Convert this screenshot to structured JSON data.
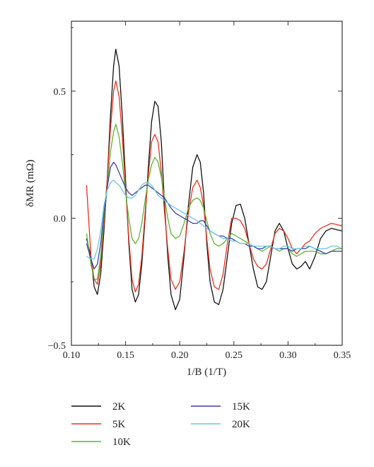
{
  "chart_data": {
    "type": "line",
    "xlabel": "1/B (1/T)",
    "ylabel": "δMR (mΩ)",
    "xlim": [
      0.1,
      0.35
    ],
    "ylim": [
      -0.5,
      0.775
    ],
    "xticks": [
      0.1,
      0.15,
      0.2,
      0.25,
      0.3,
      0.35
    ],
    "xtick_labels": [
      "0.10",
      "0.15",
      "0.20",
      "0.25",
      "0.30",
      "0.35"
    ],
    "yticks": [
      -0.5,
      0.0,
      0.5
    ],
    "ytick_labels": [
      "−0.5",
      "0.0",
      "0.5"
    ],
    "grid": false,
    "legend_position": "bottom",
    "colors": {
      "2K": "#111111",
      "5K": "#e8321e",
      "10K": "#5cb531",
      "15K": "#3b3fa6",
      "20K": "#6ec5e6"
    },
    "series": [
      {
        "name": "2K",
        "x": [
          0.114,
          0.118,
          0.121,
          0.124,
          0.127,
          0.13,
          0.133,
          0.136,
          0.139,
          0.141,
          0.144,
          0.147,
          0.15,
          0.153,
          0.156,
          0.159,
          0.162,
          0.165,
          0.168,
          0.171,
          0.174,
          0.177,
          0.18,
          0.183,
          0.186,
          0.189,
          0.192,
          0.196,
          0.2,
          0.204,
          0.208,
          0.212,
          0.216,
          0.219,
          0.222,
          0.225,
          0.228,
          0.232,
          0.236,
          0.24,
          0.244,
          0.248,
          0.252,
          0.256,
          0.26,
          0.264,
          0.268,
          0.272,
          0.276,
          0.28,
          0.284,
          0.288,
          0.292,
          0.296,
          0.3,
          0.304,
          0.308,
          0.312,
          0.316,
          0.32,
          0.325,
          0.33,
          0.335,
          0.34,
          0.345,
          0.35
        ],
        "y": [
          -0.08,
          -0.15,
          -0.27,
          -0.3,
          -0.22,
          -0.05,
          0.15,
          0.4,
          0.6,
          0.665,
          0.6,
          0.4,
          0.15,
          -0.1,
          -0.28,
          -0.33,
          -0.3,
          -0.18,
          0.0,
          0.2,
          0.38,
          0.46,
          0.44,
          0.3,
          0.05,
          -0.15,
          -0.3,
          -0.36,
          -0.32,
          -0.15,
          0.05,
          0.2,
          0.25,
          0.22,
          0.1,
          -0.1,
          -0.25,
          -0.33,
          -0.34,
          -0.28,
          -0.15,
          -0.02,
          0.05,
          0.055,
          0.0,
          -0.1,
          -0.2,
          -0.27,
          -0.28,
          -0.25,
          -0.15,
          -0.05,
          -0.02,
          -0.05,
          -0.12,
          -0.18,
          -0.2,
          -0.19,
          -0.17,
          -0.2,
          -0.15,
          -0.08,
          -0.05,
          -0.04,
          -0.045,
          -0.05
        ]
      },
      {
        "name": "5K",
        "x": [
          0.114,
          0.118,
          0.121,
          0.124,
          0.127,
          0.13,
          0.133,
          0.136,
          0.139,
          0.141,
          0.144,
          0.147,
          0.15,
          0.153,
          0.156,
          0.159,
          0.162,
          0.165,
          0.168,
          0.171,
          0.174,
          0.177,
          0.18,
          0.183,
          0.186,
          0.189,
          0.192,
          0.196,
          0.2,
          0.204,
          0.208,
          0.212,
          0.216,
          0.219,
          0.222,
          0.225,
          0.228,
          0.232,
          0.236,
          0.24,
          0.244,
          0.248,
          0.252,
          0.256,
          0.26,
          0.264,
          0.268,
          0.272,
          0.276,
          0.28,
          0.284,
          0.288,
          0.292,
          0.296,
          0.3,
          0.304,
          0.308,
          0.312,
          0.316,
          0.32,
          0.325,
          0.33,
          0.335,
          0.34,
          0.345,
          0.35
        ],
        "y": [
          0.13,
          -0.15,
          -0.24,
          -0.26,
          -0.18,
          -0.02,
          0.15,
          0.35,
          0.5,
          0.54,
          0.48,
          0.32,
          0.12,
          -0.08,
          -0.24,
          -0.29,
          -0.26,
          -0.15,
          0.02,
          0.17,
          0.3,
          0.33,
          0.3,
          0.18,
          0.02,
          -0.12,
          -0.24,
          -0.28,
          -0.25,
          -0.13,
          0.02,
          0.12,
          0.15,
          0.12,
          0.05,
          -0.08,
          -0.2,
          -0.27,
          -0.28,
          -0.22,
          -0.1,
          0.0,
          0.0,
          -0.01,
          -0.04,
          -0.1,
          -0.16,
          -0.19,
          -0.2,
          -0.18,
          -0.12,
          -0.06,
          -0.04,
          -0.05,
          -0.08,
          -0.12,
          -0.14,
          -0.12,
          -0.1,
          -0.09,
          -0.06,
          -0.04,
          -0.03,
          -0.02,
          -0.025,
          -0.03
        ]
      },
      {
        "name": "10K",
        "x": [
          0.114,
          0.118,
          0.121,
          0.124,
          0.127,
          0.13,
          0.133,
          0.136,
          0.139,
          0.141,
          0.144,
          0.147,
          0.15,
          0.153,
          0.156,
          0.159,
          0.162,
          0.165,
          0.168,
          0.171,
          0.174,
          0.177,
          0.18,
          0.183,
          0.186,
          0.189,
          0.192,
          0.196,
          0.2,
          0.204,
          0.208,
          0.212,
          0.216,
          0.219,
          0.222,
          0.225,
          0.228,
          0.232,
          0.236,
          0.24,
          0.244,
          0.248,
          0.252,
          0.256,
          0.26,
          0.264,
          0.268,
          0.272,
          0.276,
          0.28,
          0.284,
          0.288,
          0.292,
          0.296,
          0.3,
          0.304,
          0.308,
          0.312,
          0.316,
          0.32,
          0.325,
          0.33,
          0.335,
          0.34,
          0.345,
          0.35
        ],
        "y": [
          -0.06,
          -0.18,
          -0.24,
          -0.24,
          -0.15,
          0.0,
          0.12,
          0.26,
          0.34,
          0.37,
          0.32,
          0.22,
          0.1,
          0.0,
          -0.08,
          -0.1,
          -0.08,
          -0.02,
          0.07,
          0.15,
          0.21,
          0.24,
          0.22,
          0.16,
          0.08,
          0.0,
          -0.06,
          -0.08,
          -0.07,
          -0.02,
          0.04,
          0.07,
          0.08,
          0.07,
          0.04,
          -0.01,
          -0.06,
          -0.1,
          -0.11,
          -0.1,
          -0.08,
          -0.06,
          -0.07,
          -0.08,
          -0.09,
          -0.1,
          -0.11,
          -0.12,
          -0.13,
          -0.12,
          -0.11,
          -0.12,
          -0.13,
          -0.12,
          -0.12,
          -0.14,
          -0.15,
          -0.14,
          -0.13,
          -0.13,
          -0.13,
          -0.14,
          -0.14,
          -0.13,
          -0.12,
          -0.12
        ]
      },
      {
        "name": "15K",
        "x": [
          0.114,
          0.118,
          0.121,
          0.124,
          0.127,
          0.13,
          0.133,
          0.136,
          0.139,
          0.141,
          0.144,
          0.147,
          0.15,
          0.153,
          0.156,
          0.159,
          0.162,
          0.165,
          0.168,
          0.171,
          0.174,
          0.177,
          0.18,
          0.183,
          0.186,
          0.189,
          0.192,
          0.196,
          0.2,
          0.204,
          0.208,
          0.212,
          0.216,
          0.219,
          0.222,
          0.225,
          0.228,
          0.232,
          0.236,
          0.24,
          0.244,
          0.248,
          0.252,
          0.256,
          0.26,
          0.264,
          0.268,
          0.272,
          0.276,
          0.28,
          0.284,
          0.288,
          0.292,
          0.296,
          0.3,
          0.304,
          0.308,
          0.312,
          0.316,
          0.32,
          0.325,
          0.33,
          0.335,
          0.34,
          0.345,
          0.35
        ],
        "y": [
          -0.1,
          -0.16,
          -0.2,
          -0.18,
          -0.1,
          0.02,
          0.12,
          0.2,
          0.22,
          0.21,
          0.18,
          0.15,
          0.12,
          0.1,
          0.09,
          0.1,
          0.11,
          0.12,
          0.13,
          0.13,
          0.12,
          0.11,
          0.1,
          0.09,
          0.08,
          0.06,
          0.04,
          0.02,
          0.01,
          0.0,
          -0.01,
          -0.02,
          -0.02,
          -0.01,
          -0.01,
          -0.03,
          -0.05,
          -0.06,
          -0.07,
          -0.07,
          -0.08,
          -0.08,
          -0.09,
          -0.1,
          -0.1,
          -0.11,
          -0.11,
          -0.12,
          -0.12,
          -0.11,
          -0.11,
          -0.12,
          -0.12,
          -0.12,
          -0.12,
          -0.13,
          -0.12,
          -0.12,
          -0.12,
          -0.11,
          -0.12,
          -0.13,
          -0.14,
          -0.13,
          -0.13,
          -0.13
        ]
      },
      {
        "name": "20K",
        "x": [
          0.114,
          0.118,
          0.121,
          0.124,
          0.127,
          0.13,
          0.133,
          0.136,
          0.139,
          0.141,
          0.144,
          0.147,
          0.15,
          0.153,
          0.156,
          0.159,
          0.162,
          0.165,
          0.168,
          0.171,
          0.174,
          0.177,
          0.18,
          0.183,
          0.186,
          0.189,
          0.192,
          0.196,
          0.2,
          0.204,
          0.208,
          0.212,
          0.216,
          0.219,
          0.222,
          0.225,
          0.228,
          0.232,
          0.236,
          0.24,
          0.244,
          0.248,
          0.252,
          0.256,
          0.26,
          0.264,
          0.268,
          0.272,
          0.276,
          0.28,
          0.284,
          0.288,
          0.292,
          0.296,
          0.3,
          0.304,
          0.308,
          0.312,
          0.316,
          0.32,
          0.325,
          0.33,
          0.335,
          0.34,
          0.345,
          0.35
        ],
        "y": [
          -0.15,
          -0.16,
          -0.16,
          -0.12,
          -0.05,
          0.05,
          0.11,
          0.14,
          0.15,
          0.14,
          0.13,
          0.11,
          0.09,
          0.08,
          0.08,
          0.09,
          0.11,
          0.13,
          0.14,
          0.14,
          0.13,
          0.11,
          0.09,
          0.08,
          0.07,
          0.06,
          0.05,
          0.04,
          0.03,
          0.02,
          0.01,
          0.0,
          -0.01,
          -0.02,
          -0.03,
          -0.04,
          -0.05,
          -0.06,
          -0.07,
          -0.08,
          -0.08,
          -0.09,
          -0.09,
          -0.1,
          -0.1,
          -0.1,
          -0.11,
          -0.11,
          -0.11,
          -0.11,
          -0.11,
          -0.12,
          -0.12,
          -0.11,
          -0.11,
          -0.12,
          -0.12,
          -0.12,
          -0.11,
          -0.11,
          -0.12,
          -0.12,
          -0.12,
          -0.11,
          -0.11,
          -0.12
        ]
      }
    ]
  }
}
